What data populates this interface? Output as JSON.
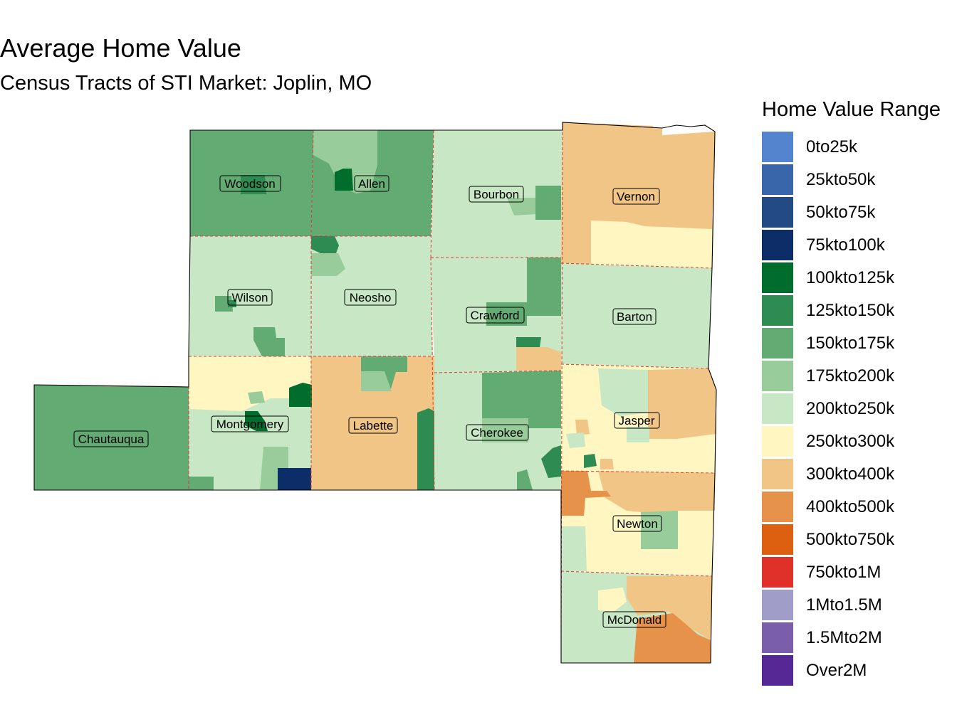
{
  "title": "Average Home Value",
  "subtitle": "Census Tracts of STI Market: Joplin, MO",
  "legend": {
    "title": "Home Value Range",
    "items": [
      {
        "label": "0to25k",
        "color": "#5384cd"
      },
      {
        "label": "25kto50k",
        "color": "#3966aa"
      },
      {
        "label": "50kto75k",
        "color": "#234a85"
      },
      {
        "label": "75kto100k",
        "color": "#0c2d68"
      },
      {
        "label": "100kto125k",
        "color": "#006d2c"
      },
      {
        "label": "125kto150k",
        "color": "#2e8b52"
      },
      {
        "label": "150kto175k",
        "color": "#62ab73"
      },
      {
        "label": "175kto200k",
        "color": "#98cc9a"
      },
      {
        "label": "200kto250k",
        "color": "#c8e7c4"
      },
      {
        "label": "250kto300k",
        "color": "#fff6c2"
      },
      {
        "label": "300kto400k",
        "color": "#f1c585"
      },
      {
        "label": "400kto500k",
        "color": "#e6924a"
      },
      {
        "label": "500kto750k",
        "color": "#dc6010"
      },
      {
        "label": "750kto1M",
        "color": "#e0302a"
      },
      {
        "label": "1Mto1.5M",
        "color": "#a19dc9"
      },
      {
        "label": "1.5Mto2M",
        "color": "#7a5eab"
      },
      {
        "label": "Over2M",
        "color": "#552896"
      }
    ]
  },
  "counties": [
    {
      "name": "Woodson",
      "range": "150kto175k"
    },
    {
      "name": "Allen",
      "range": "150kto175k"
    },
    {
      "name": "Bourbon",
      "range": "200kto250k"
    },
    {
      "name": "Vernon",
      "range": "300kto400k"
    },
    {
      "name": "Wilson",
      "range": "200kto250k"
    },
    {
      "name": "Neosho",
      "range": "200kto250k"
    },
    {
      "name": "Crawford",
      "range": "200kto250k"
    },
    {
      "name": "Barton",
      "range": "200kto250k"
    },
    {
      "name": "Chautauqua",
      "range": "150kto175k"
    },
    {
      "name": "Montgomery",
      "range": "200kto250k"
    },
    {
      "name": "Labette",
      "range": "300kto400k"
    },
    {
      "name": "Cherokee",
      "range": "200kto250k"
    },
    {
      "name": "Jasper",
      "range": "250kto300k"
    },
    {
      "name": "Newton",
      "range": "250kto300k"
    },
    {
      "name": "McDonald",
      "range": "200kto250k"
    }
  ]
}
